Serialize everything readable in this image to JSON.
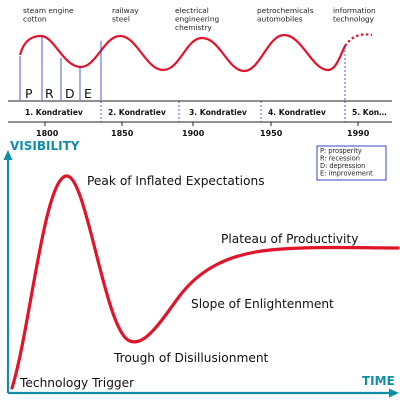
{
  "kondratiev": {
    "technologies": [
      {
        "line1": "steam engine",
        "line2": "cotton",
        "line3": ""
      },
      {
        "line1": "railway",
        "line2": "steel",
        "line3": ""
      },
      {
        "line1": "electrical",
        "line2": "engineering",
        "line3": "chemistry"
      },
      {
        "line1": "petrochemicals",
        "line2": "automobiles",
        "line3": ""
      },
      {
        "line1": "information",
        "line2": "technology",
        "line3": ""
      }
    ],
    "phases": [
      "P",
      "R",
      "D",
      "E"
    ],
    "waves": [
      "1. Kondratiev",
      "2. Kondratiev",
      "3. Kondratiev",
      "4. Kondratiev",
      "5. Kon…"
    ],
    "years": [
      "1800",
      "1850",
      "1900",
      "1950",
      "1990"
    ],
    "legend": [
      "P: prosperity",
      "R: recession",
      "D: depression",
      "E: improvement"
    ]
  },
  "hype_cycle": {
    "y_axis_label": "VISIBILITY",
    "x_axis_label": "TIME",
    "phases": [
      "Technology Trigger",
      "Peak of Inflated Expectations",
      "Trough of Disillusionment",
      "Slope of Enlightenment",
      "Plateau of Productivity"
    ]
  },
  "colors": {
    "curve": "#e0142a",
    "axis": "#0f8fa6",
    "blue_line": "#2233bb",
    "dark": "#222222"
  }
}
